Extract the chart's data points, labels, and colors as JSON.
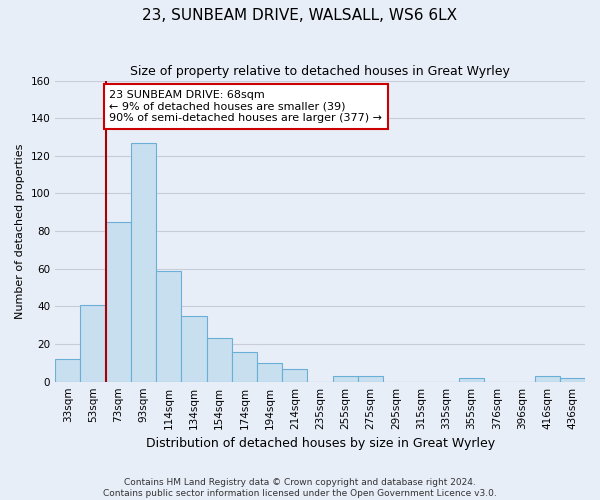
{
  "title": "23, SUNBEAM DRIVE, WALSALL, WS6 6LX",
  "subtitle": "Size of property relative to detached houses in Great Wyrley",
  "xlabel": "Distribution of detached houses by size in Great Wyrley",
  "ylabel": "Number of detached properties",
  "categories": [
    "33sqm",
    "53sqm",
    "73sqm",
    "93sqm",
    "114sqm",
    "134sqm",
    "154sqm",
    "174sqm",
    "194sqm",
    "214sqm",
    "235sqm",
    "255sqm",
    "275sqm",
    "295sqm",
    "315sqm",
    "335sqm",
    "355sqm",
    "376sqm",
    "396sqm",
    "416sqm",
    "436sqm"
  ],
  "values": [
    12,
    41,
    85,
    127,
    59,
    35,
    23,
    16,
    10,
    7,
    0,
    3,
    3,
    0,
    0,
    0,
    2,
    0,
    0,
    3,
    2
  ],
  "bar_color": "#c8dff0",
  "bar_edge_color": "#6aafd6",
  "ylim": [
    0,
    160
  ],
  "yticks": [
    0,
    20,
    40,
    60,
    80,
    100,
    120,
    140,
    160
  ],
  "vline_x_index": 2,
  "vline_color": "#aa0000",
  "annotation_title": "23 SUNBEAM DRIVE: 68sqm",
  "annotation_line1": "← 9% of detached houses are smaller (39)",
  "annotation_line2": "90% of semi-detached houses are larger (377) →",
  "annotation_box_facecolor": "#ffffff",
  "annotation_box_edgecolor": "#cc0000",
  "footer_line1": "Contains HM Land Registry data © Crown copyright and database right 2024.",
  "footer_line2": "Contains public sector information licensed under the Open Government Licence v3.0.",
  "fig_bg_color": "#e8eef8",
  "plot_bg_color": "#e8eef8",
  "grid_color": "#c8ccd8",
  "title_fontsize": 11,
  "subtitle_fontsize": 9,
  "ylabel_fontsize": 8,
  "xlabel_fontsize": 9,
  "tick_fontsize": 7.5,
  "footer_fontsize": 6.5,
  "annotation_fontsize": 8
}
